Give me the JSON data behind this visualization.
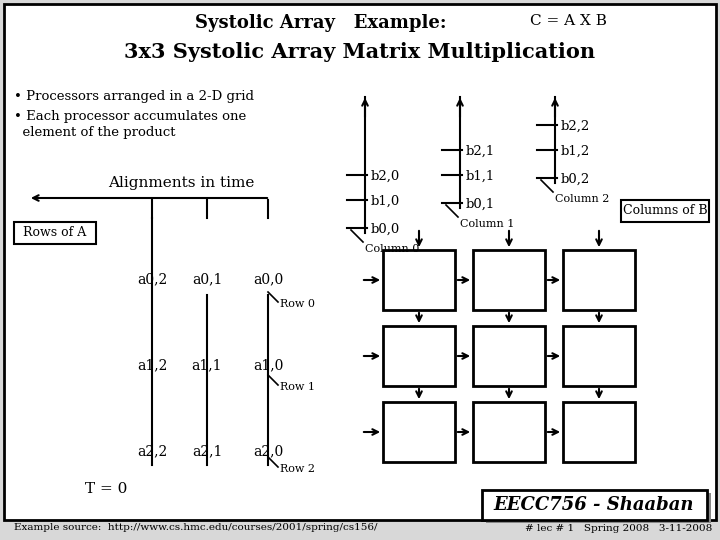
{
  "title_line1": "Systolic Array   Example:",
  "title_line2": "3x3 Systolic Array Matrix Multiplication",
  "subtitle": "C = A X B",
  "bg_color": "#d8d8d8",
  "box_facecolor": "#ffffff",
  "bullet1": "• Processors arranged in a 2-D grid",
  "bullet2a": "• Each processor accumulates one",
  "bullet2b": "  element of the product",
  "align_text": "Alignments in time",
  "rows_of_a": "Rows of A",
  "columns_of_b": "Columns of B",
  "t_eq_0": "T = 0",
  "footer_left": "Example source:  http://www.cs.hmc.edu/courses/2001/spring/cs156/",
  "footer_right": "# lec # 1   Spring 2008   3-11-2008",
  "eecc": "EECC756 - Shaaban",
  "row_labels": [
    "Row 0",
    "Row 1",
    "Row 2"
  ],
  "col0_label": "Column 0",
  "col1_label": "Column 1",
  "col2_label": "Column 2",
  "b_col0": [
    "b2,0",
    "b1,0",
    "b0,0"
  ],
  "b_col1": [
    "b2,1",
    "b1,1",
    "b0,1"
  ],
  "b_col2": [
    "b2,2",
    "b1,2",
    "b0,2"
  ],
  "a_row0": [
    "a0,2",
    "a0,1",
    "a0,0"
  ],
  "a_row1": [
    "a1,2",
    "a1,1",
    "a1,0"
  ],
  "a_row2": [
    "a2,2",
    "a2,1",
    "a2,0"
  ]
}
